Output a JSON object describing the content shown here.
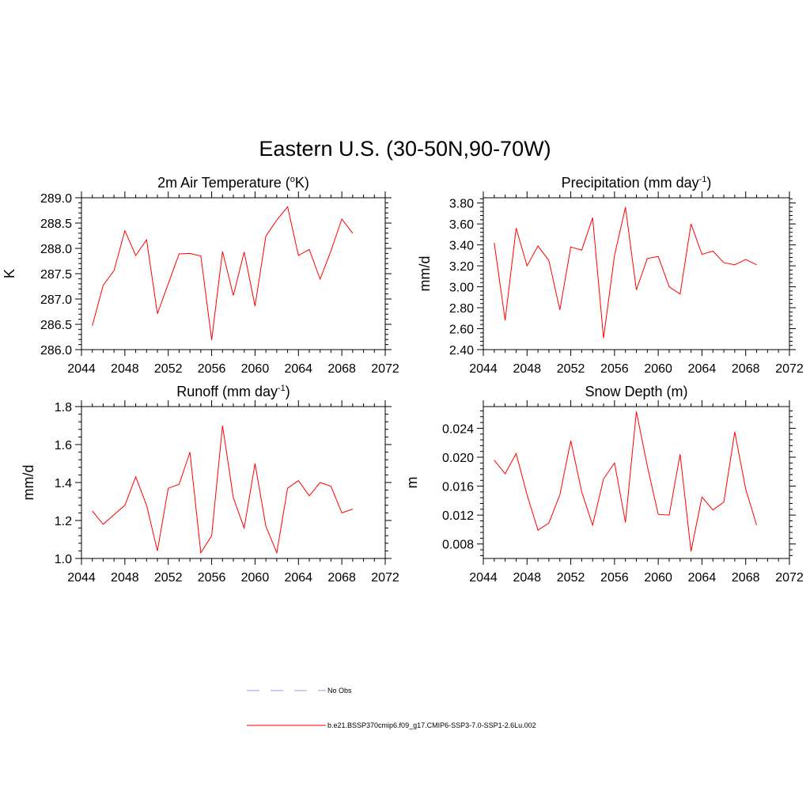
{
  "figure": {
    "title": "Eastern U.S. (30-50N,90-70W)"
  },
  "legend": [
    {
      "label": "No Obs",
      "color": "#9999ee",
      "dash": "dashed"
    },
    {
      "label": "b.e21.BSSP370cmip6.f09_g17.CMIP6-SSP3-7.0-SSP1-2.6Lu.002",
      "color": "#ff0000",
      "dash": "solid"
    }
  ],
  "chart_data": [
    {
      "type": "line",
      "title_main": "2m Air Temperature (",
      "title_sup": "o",
      "title_end": "K)",
      "ylabel": "K",
      "xlim": [
        2044,
        2072
      ],
      "ylim": [
        286.0,
        289.0
      ],
      "xticks": [
        2044,
        2048,
        2052,
        2056,
        2060,
        2064,
        2068,
        2072
      ],
      "yticks": [
        286.0,
        286.5,
        287.0,
        287.5,
        288.0,
        288.5,
        289.0
      ],
      "yticklabels": [
        "286.0",
        "286.5",
        "287.0",
        "287.5",
        "288.0",
        "288.5",
        "289.0"
      ],
      "series": [
        {
          "color": "#ff0000",
          "x": [
            2045,
            2046,
            2047,
            2048,
            2049,
            2050,
            2051,
            2052,
            2053,
            2054,
            2055,
            2056,
            2057,
            2058,
            2059,
            2060,
            2061,
            2062,
            2063,
            2064,
            2065,
            2066,
            2067,
            2068,
            2069
          ],
          "values": [
            286.47,
            287.27,
            287.56,
            288.35,
            287.86,
            288.17,
            286.71,
            287.3,
            287.89,
            287.9,
            287.85,
            286.19,
            287.94,
            287.07,
            287.93,
            286.86,
            288.24,
            288.56,
            288.82,
            287.86,
            287.98,
            287.39,
            287.95,
            288.58,
            288.3
          ]
        }
      ]
    },
    {
      "type": "line",
      "title_main": "Precipitation (mm day",
      "title_sup": "-1",
      "title_end": ")",
      "ylabel": "mm/d",
      "xlim": [
        2044,
        2072
      ],
      "ylim": [
        2.4,
        3.85
      ],
      "xticks": [
        2044,
        2048,
        2052,
        2056,
        2060,
        2064,
        2068,
        2072
      ],
      "yticks": [
        2.4,
        2.6,
        2.8,
        3.0,
        3.2,
        3.4,
        3.6,
        3.8
      ],
      "yticklabels": [
        "2.40",
        "2.60",
        "2.80",
        "3.00",
        "3.20",
        "3.40",
        "3.60",
        "3.80"
      ],
      "series": [
        {
          "color": "#ff0000",
          "x": [
            2045,
            2046,
            2047,
            2048,
            2049,
            2050,
            2051,
            2052,
            2053,
            2054,
            2055,
            2056,
            2057,
            2058,
            2059,
            2060,
            2061,
            2062,
            2063,
            2064,
            2065,
            2066,
            2067,
            2068,
            2069
          ],
          "values": [
            3.42,
            2.68,
            3.56,
            3.2,
            3.39,
            3.25,
            2.78,
            3.38,
            3.35,
            3.66,
            2.51,
            3.3,
            3.76,
            2.97,
            3.27,
            3.29,
            3.0,
            2.93,
            3.6,
            3.31,
            3.34,
            3.23,
            3.21,
            3.26,
            3.21
          ]
        }
      ]
    },
    {
      "type": "line",
      "title_main": "Runoff (mm day",
      "title_sup": "-1",
      "title_end": ")",
      "ylabel": "mm/d",
      "xlim": [
        2044,
        2072
      ],
      "ylim": [
        1.0,
        1.8
      ],
      "xticks": [
        2044,
        2048,
        2052,
        2056,
        2060,
        2064,
        2068,
        2072
      ],
      "yticks": [
        1.0,
        1.2,
        1.4,
        1.6,
        1.8
      ],
      "yticklabels": [
        "1.0",
        "1.2",
        "1.4",
        "1.6",
        "1.8"
      ],
      "series": [
        {
          "color": "#ff0000",
          "x": [
            2045,
            2046,
            2047,
            2048,
            2049,
            2050,
            2051,
            2052,
            2053,
            2054,
            2055,
            2056,
            2057,
            2058,
            2059,
            2060,
            2061,
            2062,
            2063,
            2064,
            2065,
            2066,
            2067,
            2068,
            2069
          ],
          "values": [
            1.25,
            1.18,
            1.23,
            1.28,
            1.43,
            1.28,
            1.04,
            1.37,
            1.39,
            1.56,
            1.03,
            1.12,
            1.7,
            1.32,
            1.16,
            1.5,
            1.17,
            1.03,
            1.37,
            1.41,
            1.33,
            1.4,
            1.38,
            1.24,
            1.26
          ]
        }
      ]
    },
    {
      "type": "line",
      "title_main": "Snow Depth (m)",
      "title_sup": "",
      "title_end": "",
      "ylabel": "m",
      "xlim": [
        2044,
        2072
      ],
      "ylim": [
        0.006,
        0.027
      ],
      "xticks": [
        2044,
        2048,
        2052,
        2056,
        2060,
        2064,
        2068,
        2072
      ],
      "yticks": [
        0.008,
        0.012,
        0.016,
        0.02,
        0.024
      ],
      "yticklabels": [
        "0.008",
        "0.012",
        "0.016",
        "0.020",
        "0.024"
      ],
      "series": [
        {
          "color": "#ff0000",
          "x": [
            2045,
            2046,
            2047,
            2048,
            2049,
            2050,
            2051,
            2052,
            2053,
            2054,
            2055,
            2056,
            2057,
            2058,
            2059,
            2060,
            2061,
            2062,
            2063,
            2064,
            2065,
            2066,
            2067,
            2068,
            2069
          ],
          "values": [
            0.0196,
            0.0177,
            0.0205,
            0.0148,
            0.0099,
            0.0109,
            0.0148,
            0.0223,
            0.0152,
            0.0106,
            0.017,
            0.0192,
            0.011,
            0.0263,
            0.0188,
            0.0121,
            0.012,
            0.0204,
            0.007,
            0.0145,
            0.0127,
            0.0138,
            0.0235,
            0.0156,
            0.0106
          ]
        }
      ]
    }
  ]
}
